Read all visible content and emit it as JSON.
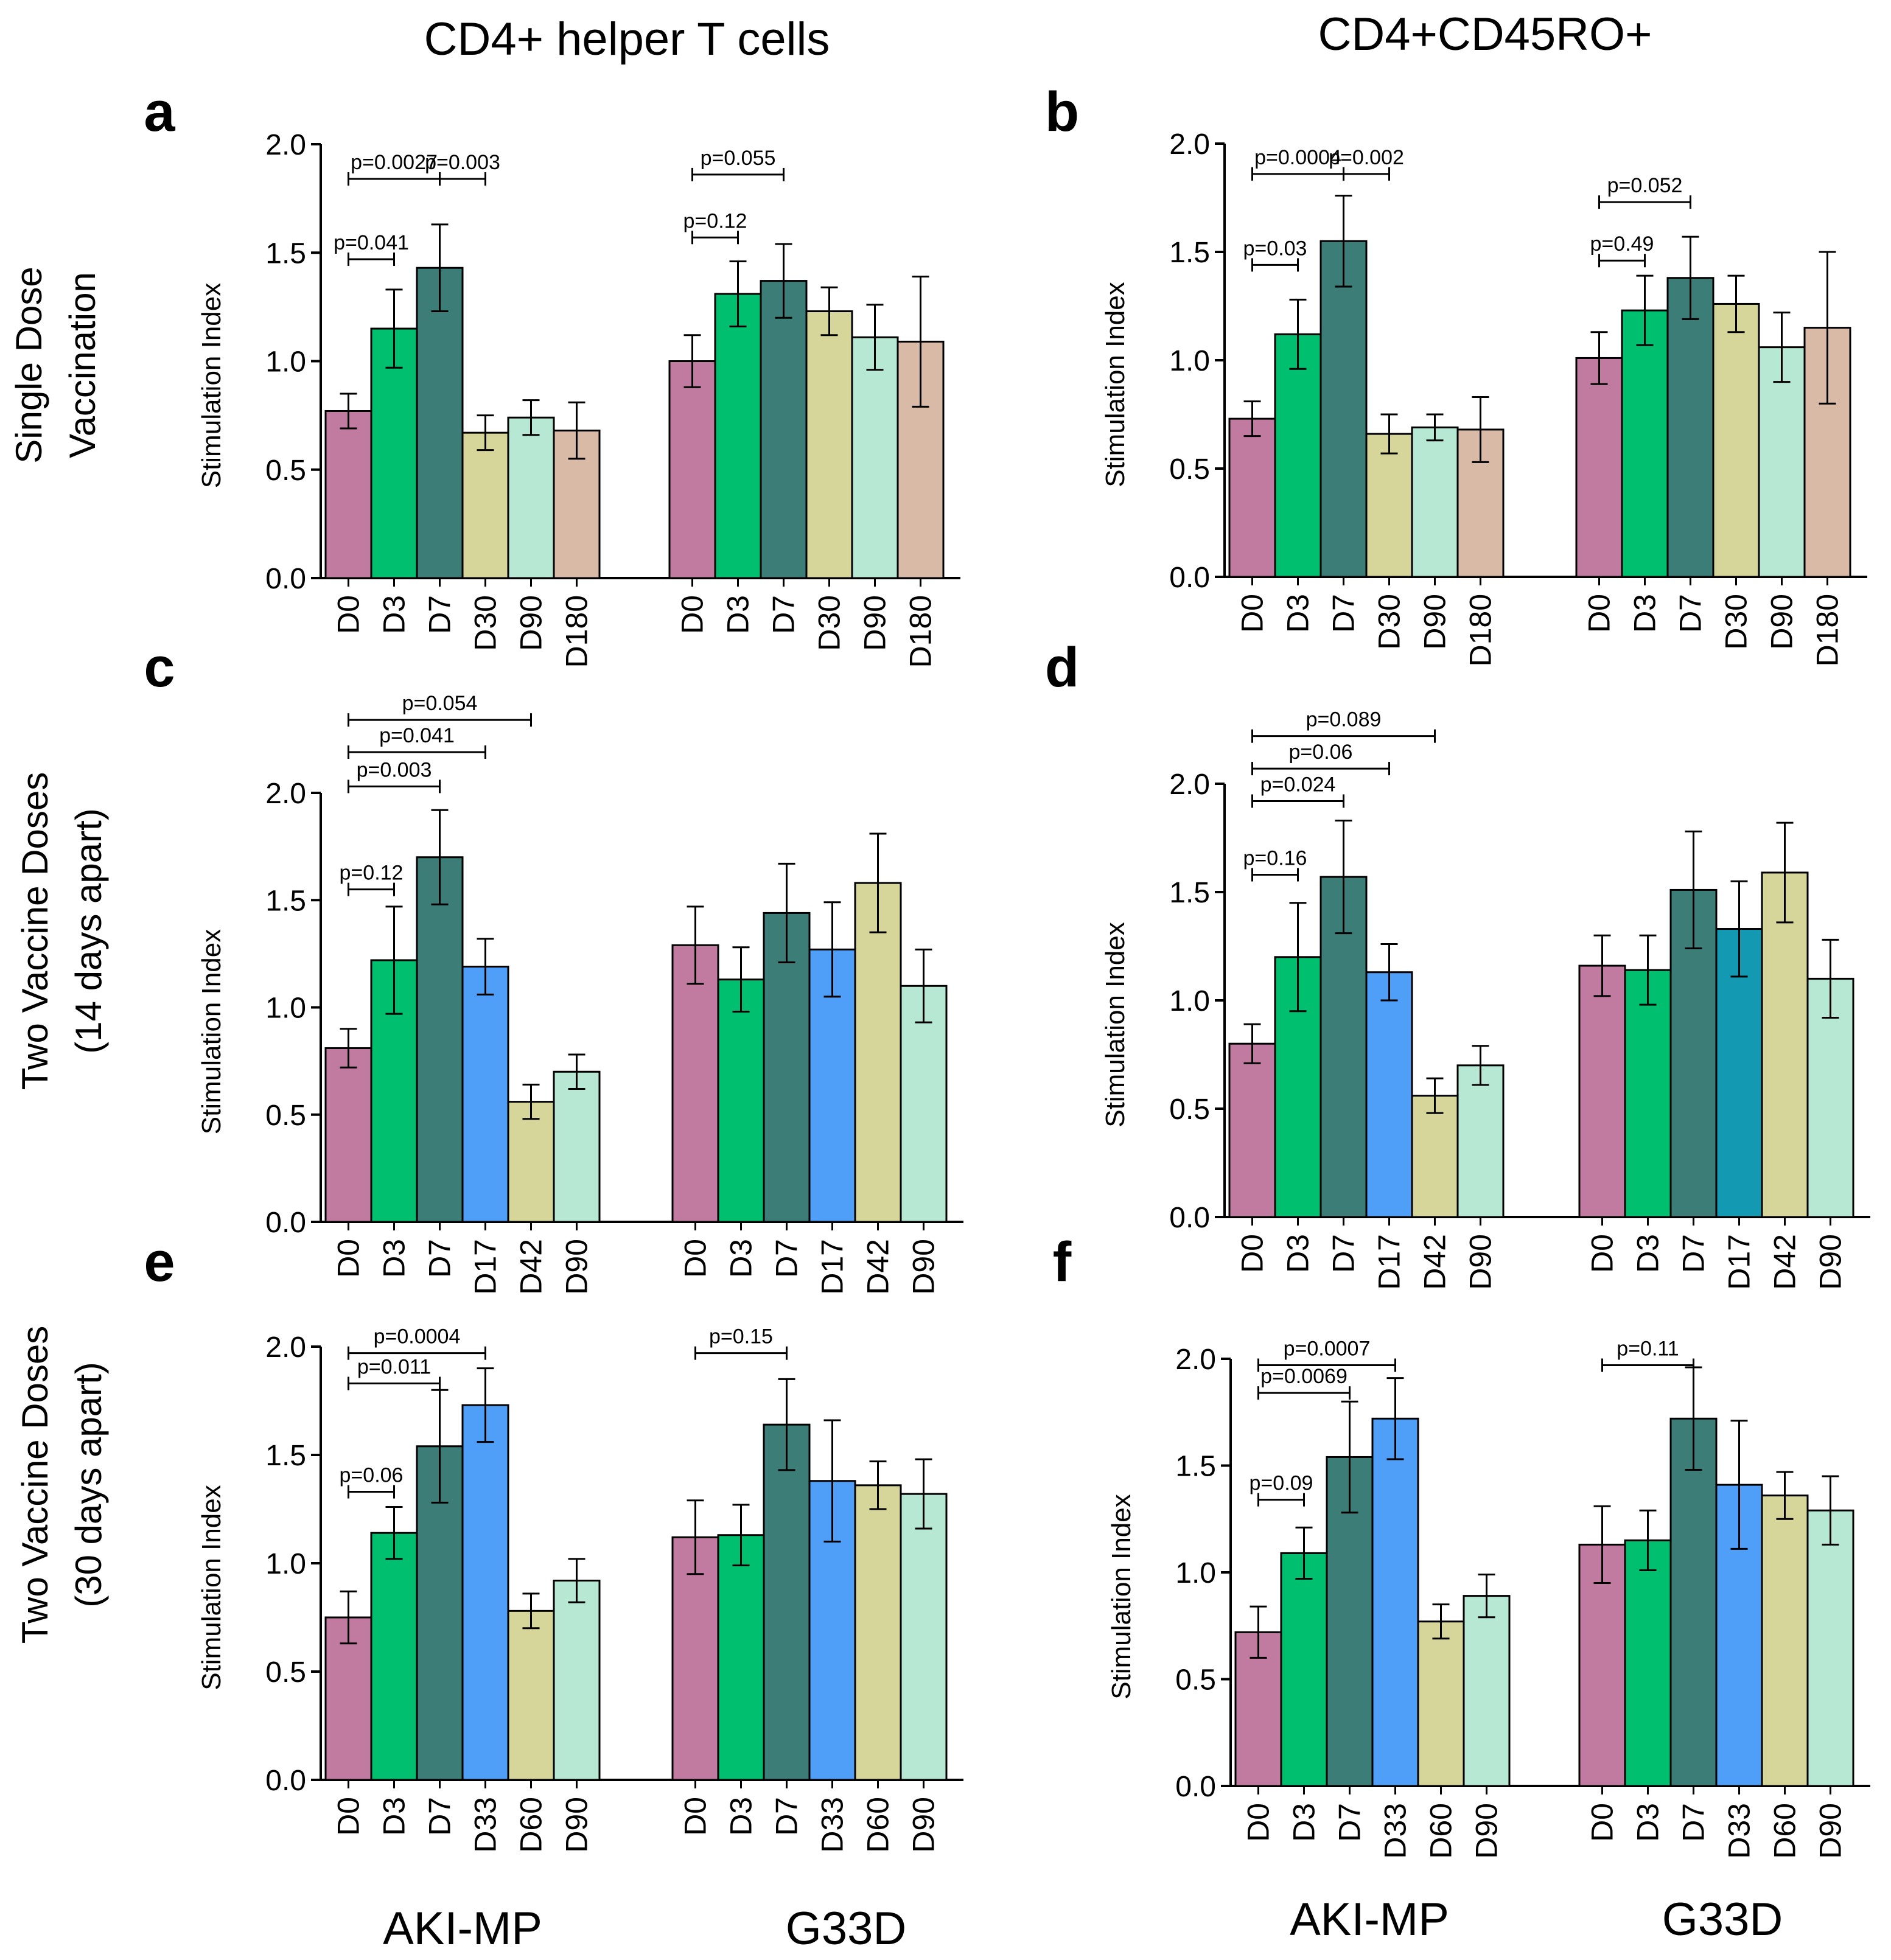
{
  "column_titles": [
    "CD4+ helper T cells",
    "CD4+CD45RO+"
  ],
  "row_titles": [
    [
      "Single Dose",
      "Vaccination"
    ],
    [
      "Two Vaccine Doses",
      "(14 days apart)"
    ],
    [
      "Two Vaccine Doses",
      "(30 days apart)"
    ]
  ],
  "group_labels": [
    "AKI-MP",
    "G33D"
  ],
  "colors": {
    "D0": "#c27ba0",
    "D3": "#00c06f",
    "D7": "#3d7d78",
    "D30": "#d6d69a",
    "D90": "#b6e8d4",
    "D180": "#d8baa6",
    "D17": "#4f9ef8",
    "D17_teal": "#1399b2",
    "D42": "#d6d69a",
    "D33": "#4f9ef8",
    "D60": "#d6d69a"
  },
  "chart_data": [
    {
      "panel": "a",
      "type": "bar",
      "ylabel": "Stimulation Index",
      "ylim": [
        0,
        2.0
      ],
      "yticks": [
        "0.0",
        "0.5",
        "1.0",
        "1.5",
        "2.0"
      ],
      "categories": [
        "D0",
        "D3",
        "D7",
        "D30",
        "D90",
        "D180"
      ],
      "series": [
        {
          "name": "AKI-MP",
          "values": [
            0.77,
            1.15,
            1.43,
            0.67,
            0.74,
            0.68
          ],
          "errors": [
            0.08,
            0.18,
            0.2,
            0.08,
            0.08,
            0.13
          ]
        },
        {
          "name": "G33D",
          "values": [
            1.0,
            1.31,
            1.37,
            1.23,
            1.11,
            1.09
          ],
          "errors": [
            0.12,
            0.15,
            0.17,
            0.11,
            0.15,
            0.3
          ]
        }
      ],
      "annotations": [
        {
          "label": "p=0.0027",
          "group": 0,
          "from": 0,
          "to": 2,
          "y": 1.84
        },
        {
          "label": "p=0.003",
          "group": 0,
          "from": 2,
          "to": 3,
          "y": 1.84
        },
        {
          "label": "p=0.041",
          "group": 0,
          "from": 0,
          "to": 1,
          "y": 1.47
        },
        {
          "label": "p=0.055",
          "group": 1,
          "from": 0,
          "to": 2,
          "y": 1.86
        },
        {
          "label": "p=0.12",
          "group": 1,
          "from": 0,
          "to": 1,
          "y": 1.57
        }
      ]
    },
    {
      "panel": "b",
      "type": "bar",
      "ylabel": "Stimulation Index",
      "ylim": [
        0,
        2.0
      ],
      "yticks": [
        "0.0",
        "0.5",
        "1.0",
        "1.5",
        "2.0"
      ],
      "categories": [
        "D0",
        "D3",
        "D7",
        "D30",
        "D90",
        "D180"
      ],
      "series": [
        {
          "name": "AKI-MP",
          "values": [
            0.73,
            1.12,
            1.55,
            0.66,
            0.69,
            0.68
          ],
          "errors": [
            0.08,
            0.16,
            0.21,
            0.09,
            0.06,
            0.15
          ]
        },
        {
          "name": "G33D",
          "values": [
            1.01,
            1.23,
            1.38,
            1.26,
            1.06,
            1.15
          ],
          "errors": [
            0.12,
            0.16,
            0.19,
            0.13,
            0.16,
            0.35
          ]
        }
      ],
      "annotations": [
        {
          "label": "p=0.0004",
          "group": 0,
          "from": 0,
          "to": 2,
          "y": 1.86
        },
        {
          "label": "p=0.002",
          "group": 0,
          "from": 2,
          "to": 3,
          "y": 1.86
        },
        {
          "label": "p=0.03",
          "group": 0,
          "from": 0,
          "to": 1,
          "y": 1.44
        },
        {
          "label": "p=0.052",
          "group": 1,
          "from": 0,
          "to": 2,
          "y": 1.73
        },
        {
          "label": "p=0.49",
          "group": 1,
          "from": 0,
          "to": 1,
          "y": 1.46
        }
      ]
    },
    {
      "panel": "c",
      "type": "bar",
      "ylabel": "Stimulation Index",
      "ylim": [
        0,
        2.0
      ],
      "yticks": [
        "0.0",
        "0.5",
        "1.0",
        "1.5",
        "2.0"
      ],
      "categories": [
        "D0",
        "D3",
        "D7",
        "D17",
        "D42",
        "D90"
      ],
      "series": [
        {
          "name": "AKI-MP",
          "values": [
            0.81,
            1.22,
            1.7,
            1.19,
            0.56,
            0.7
          ],
          "errors": [
            0.09,
            0.25,
            0.22,
            0.13,
            0.08,
            0.08
          ]
        },
        {
          "name": "G33D",
          "values": [
            1.29,
            1.13,
            1.44,
            1.27,
            1.58,
            1.1
          ],
          "errors": [
            0.18,
            0.15,
            0.23,
            0.22,
            0.23,
            0.17
          ]
        }
      ],
      "annotations": [
        {
          "label": "p=0.054",
          "group": 0,
          "from": 0,
          "to": 4,
          "y": 2.34
        },
        {
          "label": "p=0.041",
          "group": 0,
          "from": 0,
          "to": 3,
          "y": 2.19
        },
        {
          "label": "p=0.003",
          "group": 0,
          "from": 0,
          "to": 2,
          "y": 2.03
        },
        {
          "label": "p=0.12",
          "group": 0,
          "from": 0,
          "to": 1,
          "y": 1.55
        }
      ]
    },
    {
      "panel": "d",
      "type": "bar",
      "ylabel": "Stimulation Index",
      "ylim": [
        0,
        2.0
      ],
      "yticks": [
        "0.0",
        "0.5",
        "1.0",
        "1.5",
        "2.0"
      ],
      "categories": [
        "D0",
        "D3",
        "D7",
        "D17",
        "D42",
        "D90"
      ],
      "series": [
        {
          "name": "AKI-MP",
          "values": [
            0.8,
            1.2,
            1.57,
            1.13,
            0.56,
            0.7
          ],
          "errors": [
            0.09,
            0.25,
            0.26,
            0.13,
            0.08,
            0.09
          ]
        },
        {
          "name": "G33D",
          "values": [
            1.16,
            1.14,
            1.51,
            1.33,
            1.59,
            1.1
          ],
          "errors": [
            0.14,
            0.16,
            0.27,
            0.22,
            0.23,
            0.18
          ]
        }
      ],
      "annotations": [
        {
          "label": "p=0.089",
          "group": 0,
          "from": 0,
          "to": 4,
          "y": 2.22
        },
        {
          "label": "p=0.06",
          "group": 0,
          "from": 0,
          "to": 3,
          "y": 2.07
        },
        {
          "label": "p=0.024",
          "group": 0,
          "from": 0,
          "to": 2,
          "y": 1.92
        },
        {
          "label": "p=0.16",
          "group": 0,
          "from": 0,
          "to": 1,
          "y": 1.58
        }
      ]
    },
    {
      "panel": "e",
      "type": "bar",
      "ylabel": "Stimulation Index",
      "ylim": [
        0,
        2.0
      ],
      "yticks": [
        "0.0",
        "0.5",
        "1.0",
        "1.5",
        "2.0"
      ],
      "categories": [
        "D0",
        "D3",
        "D7",
        "D33",
        "D60",
        "D90"
      ],
      "series": [
        {
          "name": "AKI-MP",
          "values": [
            0.75,
            1.14,
            1.54,
            1.73,
            0.78,
            0.92
          ],
          "errors": [
            0.12,
            0.12,
            0.26,
            0.17,
            0.08,
            0.1
          ]
        },
        {
          "name": "G33D",
          "values": [
            1.12,
            1.13,
            1.64,
            1.38,
            1.36,
            1.32
          ],
          "errors": [
            0.17,
            0.14,
            0.21,
            0.28,
            0.11,
            0.16
          ]
        }
      ],
      "annotations": [
        {
          "label": "p=0.0004",
          "group": 0,
          "from": 0,
          "to": 3,
          "y": 1.97
        },
        {
          "label": "p=0.011",
          "group": 0,
          "from": 0,
          "to": 2,
          "y": 1.83
        },
        {
          "label": "p=0.06",
          "group": 0,
          "from": 0,
          "to": 1,
          "y": 1.33
        },
        {
          "label": "p=0.15",
          "group": 1,
          "from": 0,
          "to": 2,
          "y": 1.97
        }
      ]
    },
    {
      "panel": "f",
      "type": "bar",
      "ylabel": "Stimulation Index",
      "ylim": [
        0,
        2.0
      ],
      "yticks": [
        "0.0",
        "0.5",
        "1.0",
        "1.5",
        "2.0"
      ],
      "categories": [
        "D0",
        "D3",
        "D7",
        "D33",
        "D60",
        "D90"
      ],
      "series": [
        {
          "name": "AKI-MP",
          "values": [
            0.72,
            1.09,
            1.54,
            1.72,
            0.77,
            0.89
          ],
          "errors": [
            0.12,
            0.12,
            0.26,
            0.19,
            0.08,
            0.1
          ]
        },
        {
          "name": "G33D",
          "values": [
            1.13,
            1.15,
            1.72,
            1.41,
            1.36,
            1.29
          ],
          "errors": [
            0.18,
            0.14,
            0.24,
            0.3,
            0.11,
            0.16
          ]
        }
      ],
      "annotations": [
        {
          "label": "p=0.0007",
          "group": 0,
          "from": 0,
          "to": 3,
          "y": 1.97
        },
        {
          "label": "p=0.0069",
          "group": 0,
          "from": 0,
          "to": 2,
          "y": 1.84
        },
        {
          "label": "p=0.09",
          "group": 0,
          "from": 0,
          "to": 1,
          "y": 1.34
        },
        {
          "label": "p=0.11",
          "group": 1,
          "from": 0,
          "to": 2,
          "y": 1.97
        }
      ]
    }
  ]
}
